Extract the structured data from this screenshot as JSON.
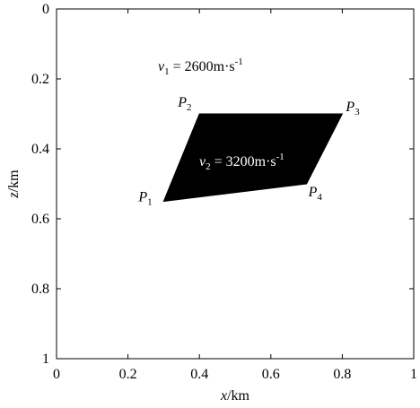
{
  "chart_data": {
    "type": "polygon",
    "x_label": {
      "symbol": "x",
      "unit": "/km"
    },
    "y_label": {
      "symbol": "z",
      "unit": "/km"
    },
    "x": [
      0.3,
      0.4,
      0.8,
      0.7
    ],
    "y": [
      0.55,
      0.3,
      0.3,
      0.5
    ],
    "point_labels": [
      {
        "symbol": "P",
        "sub": "1"
      },
      {
        "symbol": "P",
        "sub": "2"
      },
      {
        "symbol": "P",
        "sub": "3"
      },
      {
        "symbol": "P",
        "sub": "4"
      }
    ],
    "color": "#000000",
    "xlim": [
      0,
      1
    ],
    "xticks": [
      0,
      0.2,
      0.4,
      0.6,
      0.8,
      1
    ],
    "ylim": [
      0,
      1
    ],
    "yticks": [
      0,
      0.2,
      0.4,
      0.6,
      0.8,
      1
    ],
    "y_inverted": true,
    "annotations": [
      {
        "symbol": "v",
        "sub": "1",
        "text": "= 2600m·s",
        "sup": "-1"
      },
      {
        "symbol": "v",
        "sub": "2",
        "text": "= 3200m·s",
        "sup": "-1"
      }
    ]
  }
}
